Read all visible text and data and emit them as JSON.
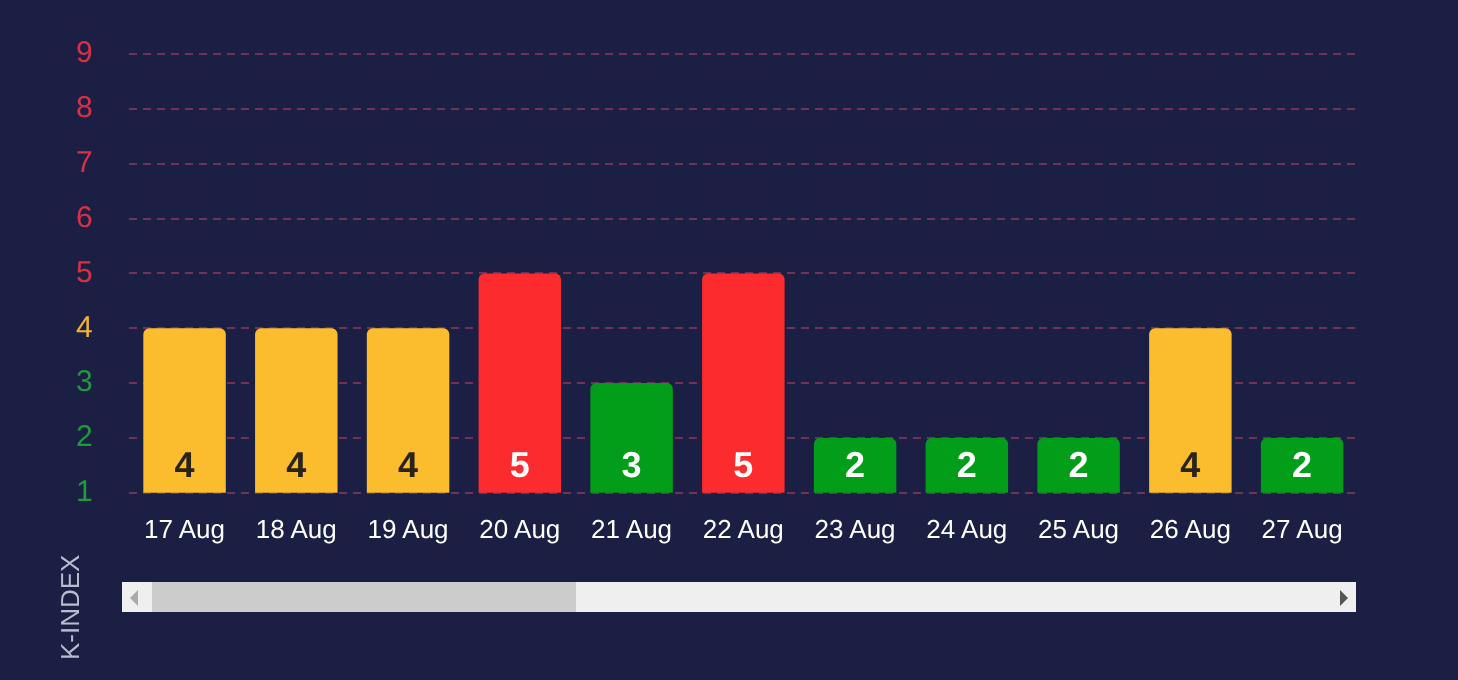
{
  "chart_data": {
    "type": "bar",
    "ylabel": "K-INDEX",
    "categories": [
      "17 Aug",
      "18 Aug",
      "19 Aug",
      "20 Aug",
      "21 Aug",
      "22 Aug",
      "23 Aug",
      "24 Aug",
      "25 Aug",
      "26 Aug",
      "27 Aug"
    ],
    "values": [
      4,
      4,
      4,
      5,
      3,
      5,
      2,
      2,
      2,
      4,
      2
    ],
    "colors": [
      "#fbbd2e",
      "#fbbd2e",
      "#fbbd2e",
      "#fc2b2d",
      "#029e19",
      "#fc2b2d",
      "#029e19",
      "#029e19",
      "#029e19",
      "#fbbd2e",
      "#029e19"
    ],
    "ylim": [
      1,
      9
    ],
    "yticks": [
      1,
      2,
      3,
      4,
      5,
      6,
      7,
      8,
      9
    ],
    "grid": "y",
    "data_labels": true
  }
}
